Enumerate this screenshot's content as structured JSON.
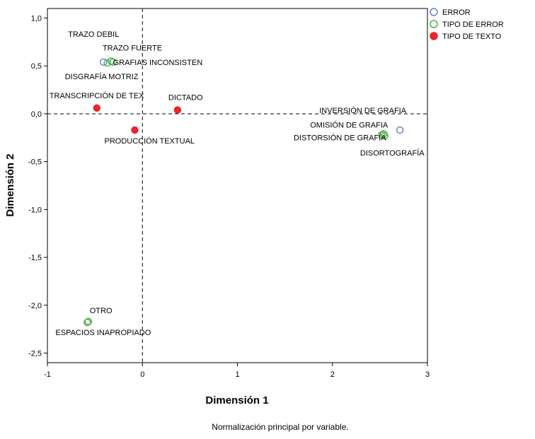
{
  "chart_data": {
    "type": "scatter",
    "title": "",
    "xlabel": "Dimensión 1",
    "ylabel": "Dimensión 2",
    "xlim": [
      -1,
      3
    ],
    "ylim": [
      -2.6,
      1.1
    ],
    "x_ticks": [
      -1,
      0,
      1,
      2,
      3
    ],
    "x_tick_labels": [
      "-1",
      "0",
      "1",
      "2",
      "3"
    ],
    "y_ticks": [
      1.0,
      0.5,
      0.0,
      -0.5,
      -1.0,
      -1.5,
      -2.0,
      -2.5
    ],
    "y_tick_labels": [
      "1,0",
      "0,5",
      "0,0",
      "-0,5",
      "-1,0",
      "-1,5",
      "-2,0",
      "-2,5"
    ],
    "reference_lines": {
      "x": 0,
      "y": 0,
      "style": "dashed"
    },
    "grid": false,
    "legend_position": "top-right",
    "note": "Normalización principal por variable.",
    "series": [
      {
        "name": "ERROR",
        "color": "#6e82c8",
        "marker": "open-circle",
        "points": [
          {
            "label": "TRAZO DEBIL",
            "x": -0.41,
            "y": 0.54
          },
          {
            "label": "INVERSIÓN DE GRAFIA",
            "x": 2.71,
            "y": -0.17
          }
        ]
      },
      {
        "name": "TIPO DE ERROR",
        "color": "#4caf50",
        "marker": "open-circle",
        "points": [
          {
            "label": "TRAZO FUERTE",
            "x": -0.33,
            "y": 0.55
          },
          {
            "label": "GRAFIAS  INCONSISTEN",
            "x": -0.31,
            "y": 0.54
          },
          {
            "label": "DISGRAFÍA MOTRIZ",
            "x": -0.37,
            "y": 0.53
          },
          {
            "label": "OMISIÓN DE GRAFIA",
            "x": 2.54,
            "y": -0.21
          },
          {
            "label": "DISTORSIÓN DE GRAFÍA",
            "x": 2.52,
            "y": -0.22
          },
          {
            "label": "DISORTOGRAFÍA",
            "x": 2.55,
            "y": -0.23
          },
          {
            "label": "OTRO",
            "x": -0.57,
            "y": -2.17
          },
          {
            "label": "ESPACIOS INAPROPIADO",
            "x": -0.58,
            "y": -2.18
          }
        ]
      },
      {
        "name": "TIPO DE TEXTO",
        "color": "#e8262e",
        "marker": "filled-circle",
        "points": [
          {
            "label": "TRANSCRIPCIÓN DE TEX",
            "x": -0.48,
            "y": 0.06
          },
          {
            "label": "DICTADO",
            "x": 0.37,
            "y": 0.04
          },
          {
            "label": "PRODUCCIÓN TEXTUAL",
            "x": -0.08,
            "y": -0.17
          }
        ]
      }
    ]
  }
}
